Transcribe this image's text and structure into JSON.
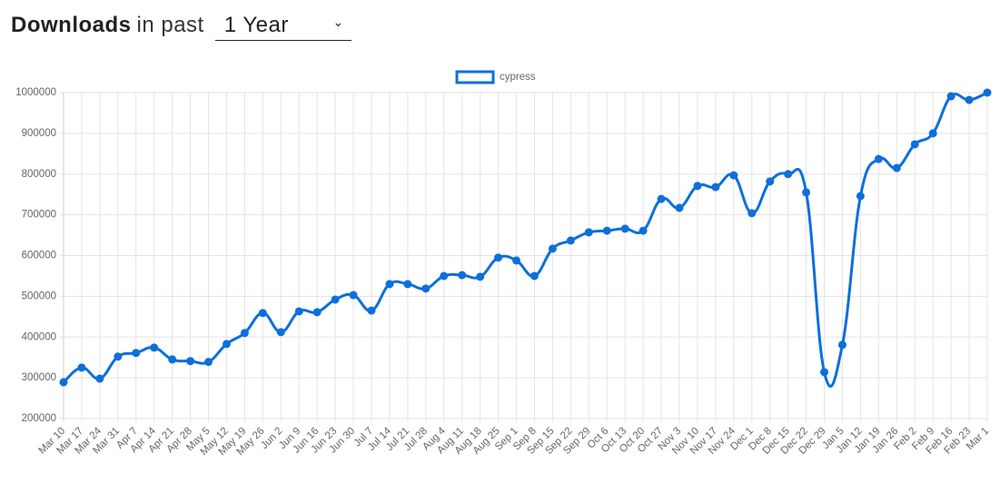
{
  "header": {
    "title": "Downloads",
    "subtitle": "in past",
    "select": "1 Year"
  },
  "chart_data": {
    "type": "line",
    "categories": [
      "Mar 10",
      "Mar 17",
      "Mar 24",
      "Mar 31",
      "Apr 7",
      "Apr 14",
      "Apr 21",
      "Apr 28",
      "May 5",
      "May 12",
      "May 19",
      "May 26",
      "Jun 2",
      "Jun 9",
      "Jun 16",
      "Jun 23",
      "Jun 30",
      "Jul 7",
      "Jul 14",
      "Jul 21",
      "Jul 28",
      "Aug 4",
      "Aug 11",
      "Aug 18",
      "Aug 25",
      "Sep 1",
      "Sep 8",
      "Sep 15",
      "Sep 22",
      "Sep 29",
      "Oct 6",
      "Oct 13",
      "Oct 20",
      "Oct 27",
      "Nov 3",
      "Nov 10",
      "Nov 17",
      "Nov 24",
      "Dec 1",
      "Dec 8",
      "Dec 15",
      "Dec 22",
      "Dec 29",
      "Jan 5",
      "Jan 12",
      "Jan 19",
      "Jan 26",
      "Feb 2",
      "Feb 9",
      "Feb 16",
      "Feb 23",
      "Mar 1"
    ],
    "series": [
      {
        "name": "cypress",
        "color": "#0d6fdb",
        "values": [
          289000,
          325000,
          298000,
          352000,
          361000,
          374000,
          345000,
          341000,
          339000,
          383000,
          410000,
          459000,
          412000,
          463000,
          461000,
          492000,
          503000,
          465000,
          530000,
          530000,
          519000,
          550000,
          552000,
          548000,
          595000,
          588000,
          550000,
          617000,
          637000,
          657000,
          661000,
          666000,
          661000,
          739000,
          717000,
          771000,
          768000,
          797000,
          704000,
          782000,
          800000,
          755000,
          314000,
          381000,
          746000,
          837000,
          815000,
          873000,
          900000,
          991000,
          982000,
          1000000
        ]
      }
    ],
    "ylim": [
      200000,
      1000000
    ],
    "yticks": [
      200000,
      300000,
      400000,
      500000,
      600000,
      700000,
      800000,
      900000,
      1000000
    ],
    "grid": true
  }
}
